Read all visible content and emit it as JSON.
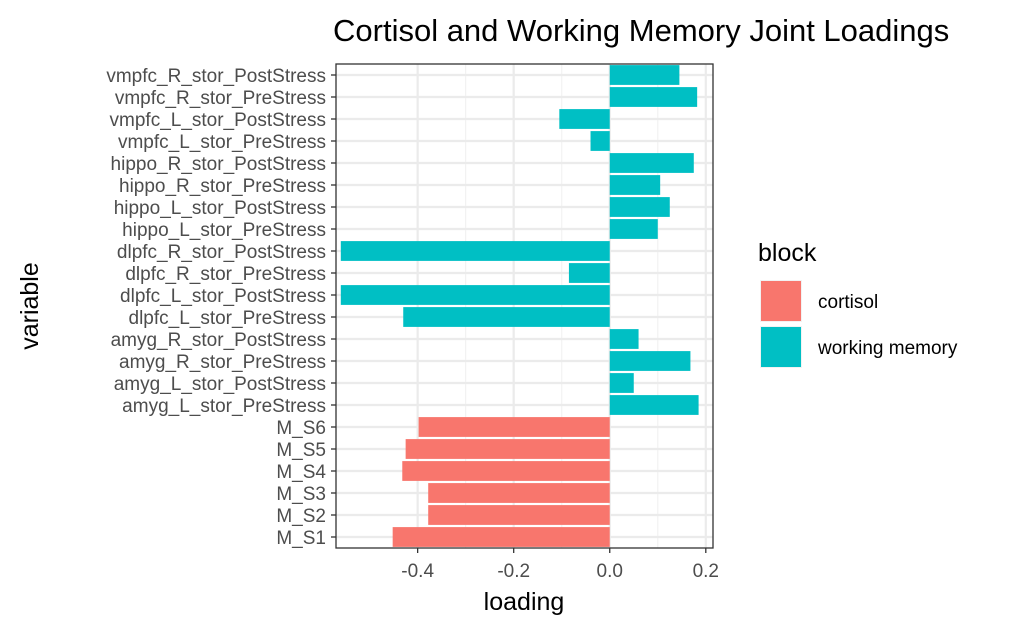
{
  "chart_data": {
    "type": "bar",
    "orientation": "horizontal",
    "title": "Cortisol and Working Memory Joint Loadings",
    "xlabel": "loading",
    "ylabel": "variable",
    "xlim": [
      -0.57,
      0.215
    ],
    "xticks": [
      -0.4,
      -0.2,
      0.0,
      0.2
    ],
    "xtick_labels": [
      "-0.4",
      "-0.2",
      "0.0",
      "0.2"
    ],
    "grid": true,
    "legend": {
      "title": "block",
      "position": "right",
      "entries": [
        {
          "name": "cortisol",
          "color": "#F8766D"
        },
        {
          "name": "working memory",
          "color": "#00BFC4"
        }
      ]
    },
    "categories": [
      "vmpfc_R_stor_PostStress",
      "vmpfc_R_stor_PreStress",
      "vmpfc_L_stor_PostStress",
      "vmpfc_L_stor_PreStress",
      "hippo_R_stor_PostStress",
      "hippo_R_stor_PreStress",
      "hippo_L_stor_PostStress",
      "hippo_L_stor_PreStress",
      "dlpfc_R_stor_PostStress",
      "dlpfc_R_stor_PreStress",
      "dlpfc_L_stor_PostStress",
      "dlpfc_L_stor_PreStress",
      "amyg_R_stor_PostStress",
      "amyg_R_stor_PreStress",
      "amyg_L_stor_PostStress",
      "amyg_L_stor_PreStress",
      "M_S6",
      "M_S5",
      "M_S4",
      "M_S3",
      "M_S2",
      "M_S1"
    ],
    "values": [
      0.145,
      0.182,
      -0.105,
      -0.04,
      0.175,
      0.105,
      0.125,
      0.1,
      -0.56,
      -0.085,
      -0.56,
      -0.43,
      0.06,
      0.168,
      0.05,
      0.185,
      -0.398,
      -0.425,
      -0.432,
      -0.378,
      -0.378,
      -0.452
    ],
    "blocks": [
      "working memory",
      "working memory",
      "working memory",
      "working memory",
      "working memory",
      "working memory",
      "working memory",
      "working memory",
      "working memory",
      "working memory",
      "working memory",
      "working memory",
      "working memory",
      "working memory",
      "working memory",
      "working memory",
      "cortisol",
      "cortisol",
      "cortisol",
      "cortisol",
      "cortisol",
      "cortisol"
    ]
  }
}
